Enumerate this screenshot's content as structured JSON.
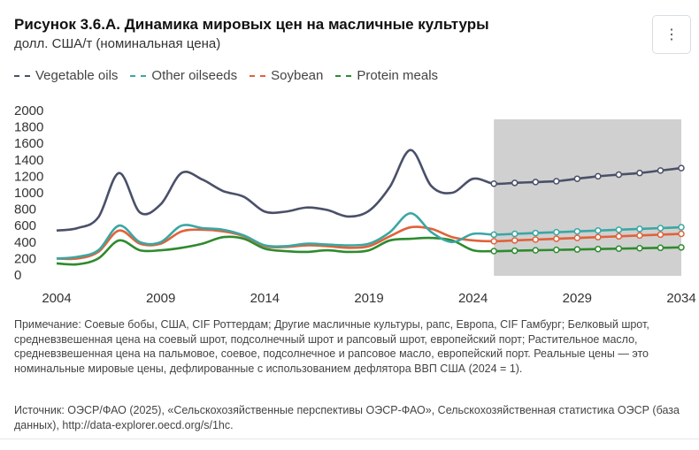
{
  "header": {
    "title": "Рисунок 3.6.А. Динамика мировых цен на масличные культуры",
    "subtitle": "долл. США/т (номинальная цена)",
    "menu_icon": "⋮"
  },
  "footer": {
    "note": "Примечание: Соевые бобы, США, CIF Роттердам; Другие масличные культуры, рапс, Европа, CIF Гамбург; Белковый шрот, средневзвешенная цена на соевый шрот, подсолнечный шрот и рапсовый шрот, европейский порт; Растительное масло, средневзвешенная цена на пальмовое, соевое, подсолнечное и рапсовое масло, европейский порт. Реальные цены — это номинальные мировые цены, дефлированные с использованием дефлятора ВВП США (2024 = 1).",
    "source": "Источник: ОЭСР/ФАО (2025), «Сельскохозяйственные перспективы ОЭСР-ФАО», Сельскохозяйственная статистика ОЭСР (база данных), http://data-explorer.oecd.org/s/1hc."
  },
  "chart_data": {
    "type": "line",
    "x": [
      2004,
      2005,
      2006,
      2007,
      2008,
      2009,
      2010,
      2011,
      2012,
      2013,
      2014,
      2015,
      2016,
      2017,
      2018,
      2019,
      2020,
      2021,
      2022,
      2023,
      2024,
      2025,
      2026,
      2027,
      2028,
      2029,
      2030,
      2031,
      2032,
      2033,
      2034
    ],
    "xticks": [
      2004,
      2009,
      2014,
      2019,
      2024,
      2029,
      2034
    ],
    "yticks": [
      0,
      200,
      400,
      600,
      800,
      1000,
      1200,
      1400,
      1600,
      1800,
      2000
    ],
    "ylim": [
      0,
      2000
    ],
    "xlim": [
      2004,
      2034
    ],
    "projection_start": 2025,
    "projection_shading": "#d0d0d0",
    "grid": false,
    "legend_position": "top-left",
    "series": [
      {
        "name": "Vegetable oils",
        "color": "#4a5068",
        "values": [
          540,
          570,
          700,
          1240,
          760,
          860,
          1240,
          1160,
          1020,
          950,
          770,
          770,
          820,
          790,
          710,
          780,
          1070,
          1520,
          1080,
          1000,
          1170,
          1110,
          1120,
          1130,
          1140,
          1170,
          1200,
          1220,
          1240,
          1270,
          1300
        ]
      },
      {
        "name": "Other oilseeds",
        "color": "#3aa7a3",
        "values": [
          200,
          220,
          300,
          600,
          400,
          400,
          600,
          570,
          550,
          480,
          360,
          350,
          380,
          370,
          360,
          380,
          520,
          750,
          520,
          400,
          500,
          490,
          500,
          510,
          520,
          530,
          540,
          550,
          560,
          570,
          580
        ]
      },
      {
        "name": "Soybean",
        "color": "#e0623a",
        "values": [
          200,
          200,
          280,
          540,
          380,
          380,
          530,
          550,
          530,
          470,
          350,
          340,
          360,
          350,
          330,
          350,
          470,
          580,
          560,
          460,
          420,
          410,
          420,
          430,
          440,
          450,
          460,
          470,
          480,
          490,
          500
        ]
      },
      {
        "name": "Protein meals",
        "color": "#2e8b2e",
        "values": [
          140,
          130,
          200,
          420,
          300,
          300,
          330,
          380,
          460,
          440,
          320,
          290,
          280,
          300,
          280,
          300,
          420,
          440,
          450,
          420,
          300,
          290,
          295,
          300,
          305,
          310,
          315,
          320,
          325,
          330,
          335
        ]
      }
    ]
  }
}
